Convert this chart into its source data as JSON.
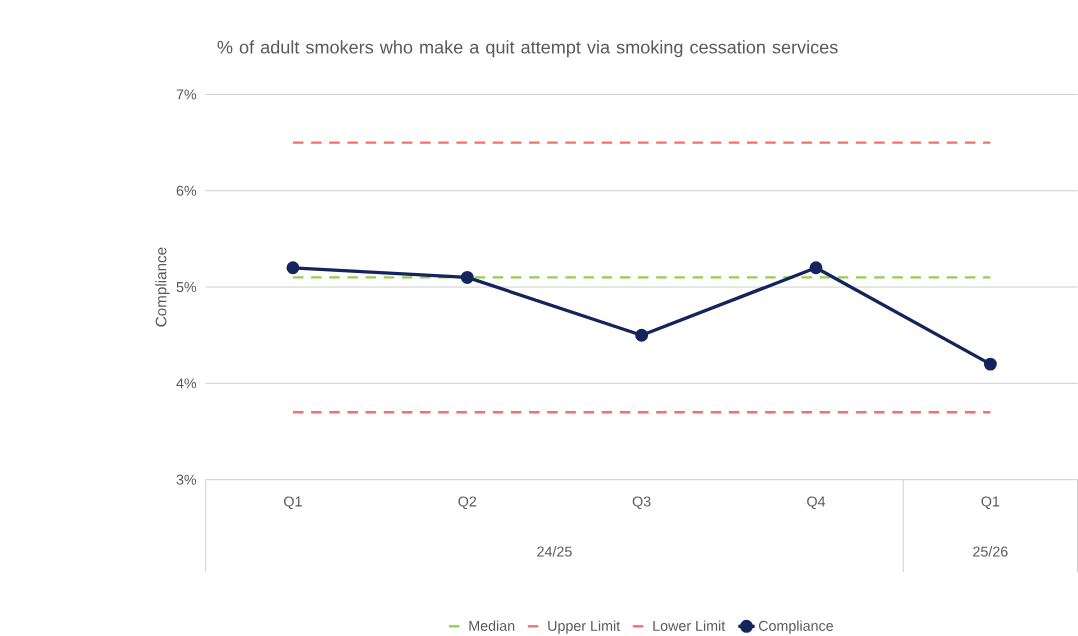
{
  "chart_data": {
    "type": "line",
    "title": "% of adult smokers who make a quit attempt via smoking cessation services",
    "ylabel": "Compliance",
    "categories": [
      "Q1",
      "Q2",
      "Q3",
      "Q4",
      "Q1"
    ],
    "annotations": [
      "24/25",
      "25/26"
    ],
    "series": [
      {
        "name": "Median",
        "color": "#92d050",
        "line_style": "dashed",
        "marker": "none",
        "values": [
          5.1,
          5.1,
          5.1,
          5.1,
          5.1
        ]
      },
      {
        "name": "Upper Limit",
        "color": "#f4716b",
        "line_style": "dashed",
        "marker": "none",
        "values": [
          6.5,
          6.5,
          6.5,
          6.5,
          6.5
        ]
      },
      {
        "name": "Lower Limit",
        "color": "#f4716b",
        "line_style": "dashed",
        "marker": "none",
        "values": [
          3.7,
          3.7,
          3.7,
          3.7,
          3.7
        ]
      },
      {
        "name": "Compliance",
        "color": "#14245c",
        "line_style": "solid",
        "marker": "circle",
        "values": [
          5.2,
          5.1,
          4.5,
          5.2,
          4.2
        ]
      }
    ],
    "ylim": [
      3,
      7
    ],
    "yticks": [
      {
        "value": 3,
        "label": "3%"
      },
      {
        "value": 4,
        "label": "4%"
      },
      {
        "value": 5,
        "label": "5%"
      },
      {
        "value": 6,
        "label": "6%"
      },
      {
        "value": 7,
        "label": "7%"
      }
    ],
    "grid": "y",
    "legend": "bottom"
  }
}
